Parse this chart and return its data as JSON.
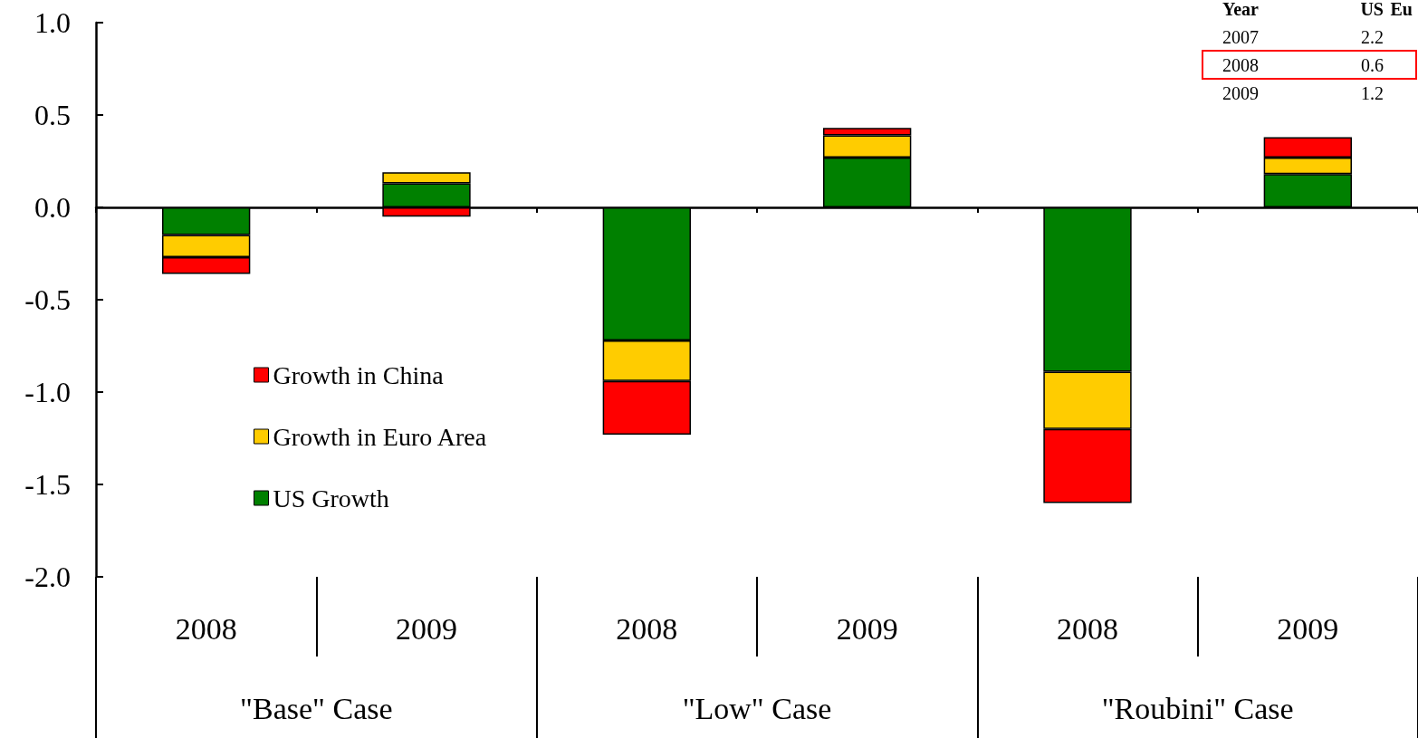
{
  "chart_data": {
    "type": "bar",
    "stacked": true,
    "categories": [
      "2008",
      "2009",
      "2008",
      "2009",
      "2008",
      "2009"
    ],
    "series": [
      {
        "name": "US Growth",
        "color": "#008000",
        "values": [
          -0.15,
          0.13,
          -0.72,
          0.27,
          -0.89,
          0.18
        ]
      },
      {
        "name": "Growth in Euro Area",
        "color": "#ffcc00",
        "values": [
          -0.12,
          0.06,
          -0.22,
          0.12,
          -0.31,
          0.09
        ]
      },
      {
        "name": "Growth in China",
        "color": "#ff0000",
        "values": [
          -0.09,
          -0.05,
          -0.29,
          0.04,
          -0.4,
          0.11
        ]
      }
    ],
    "ylim": [
      -2,
      1
    ],
    "yticks": [
      {
        "value": -2,
        "label": "-2.0"
      },
      {
        "value": -1.5,
        "label": "-1.5"
      },
      {
        "value": -1,
        "label": "-1.0"
      },
      {
        "value": -0.5,
        "label": "-0.5"
      },
      {
        "value": 0,
        "label": "0.0"
      },
      {
        "value": 0.5,
        "label": "0.5"
      },
      {
        "value": 1,
        "label": "1.0"
      }
    ],
    "legend": "left",
    "annotations": [
      "\"Base\" Case",
      "\"Low\" Case",
      "\"Roubini\" Case",
      "Year",
      "US",
      "Eu",
      "2007",
      "2.2",
      "2008",
      "0.6",
      "2009",
      "1.2"
    ]
  }
}
